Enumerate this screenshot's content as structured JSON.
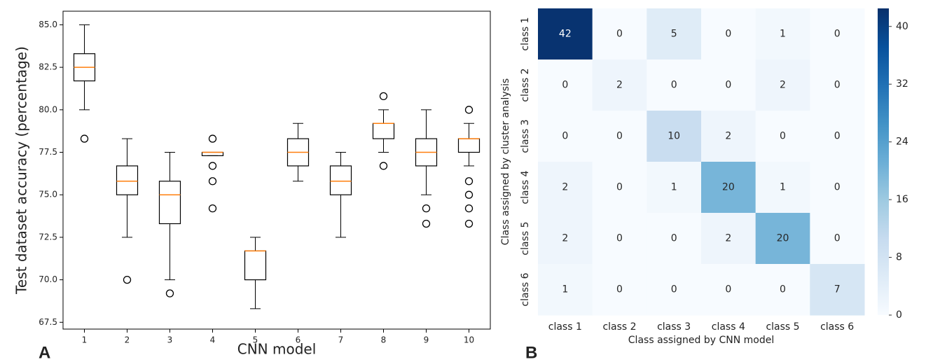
{
  "chart_data": [
    {
      "type": "box",
      "panel_label": "A",
      "xlabel": "CNN model",
      "ylabel": "Test dataset accuracy (percentage)",
      "categories": [
        "1",
        "2",
        "3",
        "4",
        "5",
        "6",
        "7",
        "8",
        "9",
        "10"
      ],
      "box_color": "#000000",
      "median_color": "#ff7f0e",
      "boxes": [
        {
          "min": 80.0,
          "q1": 81.7,
          "median": 82.5,
          "q3": 83.3,
          "max": 85.0,
          "outliers": [
            78.3
          ]
        },
        {
          "min": 72.5,
          "q1": 75.0,
          "median": 75.8,
          "q3": 76.7,
          "max": 78.3,
          "outliers": [
            70.0
          ]
        },
        {
          "min": 70.0,
          "q1": 73.3,
          "median": 75.0,
          "q3": 75.8,
          "max": 77.5,
          "outliers": [
            69.2
          ]
        },
        {
          "min": 77.3,
          "q1": 77.3,
          "median": 77.5,
          "q3": 77.5,
          "max": 77.5,
          "outliers": [
            78.3,
            76.7,
            75.8,
            74.2
          ]
        },
        {
          "min": 68.3,
          "q1": 70.0,
          "median": 71.7,
          "q3": 71.7,
          "max": 72.5,
          "outliers": []
        },
        {
          "min": 75.8,
          "q1": 76.7,
          "median": 77.5,
          "q3": 78.3,
          "max": 79.2,
          "outliers": []
        },
        {
          "min": 72.5,
          "q1": 75.0,
          "median": 75.8,
          "q3": 76.7,
          "max": 77.5,
          "outliers": []
        },
        {
          "min": 77.5,
          "q1": 78.3,
          "median": 79.2,
          "q3": 79.2,
          "max": 80.0,
          "outliers": [
            80.8,
            76.7
          ]
        },
        {
          "min": 75.0,
          "q1": 76.7,
          "median": 77.5,
          "q3": 78.3,
          "max": 80.0,
          "outliers": [
            74.2,
            73.3
          ]
        },
        {
          "min": 76.7,
          "q1": 77.5,
          "median": 78.3,
          "q3": 78.3,
          "max": 79.2,
          "outliers": [
            80.0,
            75.8,
            75.0,
            74.2,
            73.3
          ]
        }
      ],
      "ylim": [
        67.1,
        85.8
      ],
      "yticks": [
        67.5,
        {
          "value": 70,
          "label": "70.0"
        },
        72.5,
        {
          "value": 75,
          "label": "75.0"
        },
        77.5,
        {
          "value": 80,
          "label": "80.0"
        },
        82.5,
        {
          "value": 85,
          "label": "85.0"
        }
      ]
    },
    {
      "type": "heatmap",
      "panel_label": "B",
      "xlabel": "Class assigned by CNN model",
      "ylabel": "Class assigned by cluster analysis",
      "x_categories": [
        "class 1",
        "class 2",
        "class 3",
        "class 4",
        "class 5",
        "class 6"
      ],
      "y_categories": [
        "class 1",
        "class 2",
        "class 3",
        "class 4",
        "class 5",
        "class 6"
      ],
      "values": [
        [
          42,
          0,
          5,
          0,
          1,
          0
        ],
        [
          0,
          2,
          0,
          0,
          2,
          0
        ],
        [
          0,
          0,
          10,
          2,
          0,
          0
        ],
        [
          2,
          0,
          1,
          20,
          1,
          0
        ],
        [
          2,
          0,
          0,
          2,
          20,
          0
        ],
        [
          1,
          0,
          0,
          0,
          0,
          7
        ]
      ],
      "clim": [
        0,
        42.5
      ],
      "cticks": [
        0,
        8,
        16,
        24,
        32,
        40
      ],
      "colormap": [
        "#f7fbff",
        "#deebf7",
        "#c6dbef",
        "#9ecae1",
        "#6baed6",
        "#4292c6",
        "#2171b5",
        "#08519c",
        "#08306b"
      ]
    }
  ]
}
